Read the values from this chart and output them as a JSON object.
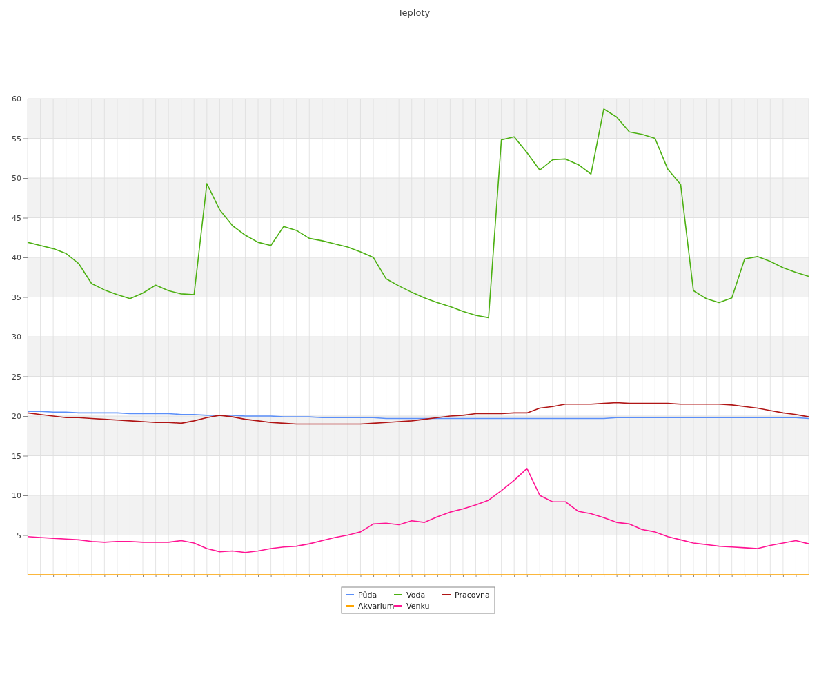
{
  "chart_data": {
    "type": "line",
    "title": "Teploty",
    "ylim": [
      0,
      60
    ],
    "yticks": [
      {
        "value": 0,
        "label": null
      },
      5,
      10,
      15,
      20,
      25,
      30,
      35,
      40,
      45,
      50,
      55,
      60
    ],
    "categories": [
      null,
      null,
      null,
      null,
      null,
      null,
      null,
      null,
      null,
      null,
      null,
      null,
      null,
      null,
      null,
      null,
      null,
      null,
      null,
      null,
      null,
      null,
      null,
      null,
      null,
      null,
      null,
      null,
      null,
      null,
      null,
      null,
      null,
      null,
      null,
      null,
      null,
      null,
      null,
      null,
      null,
      null,
      null,
      null,
      null,
      null,
      null,
      null,
      null,
      null,
      null,
      null,
      null,
      null,
      null,
      null,
      null,
      null,
      null,
      null,
      null,
      null
    ],
    "grid": true,
    "legend": "bottom",
    "line_style": "solid",
    "series": [
      {
        "name": "Půda",
        "color": "#5b8ff9",
        "values": [
          20.6,
          20.6,
          20.5,
          20.5,
          20.4,
          20.4,
          20.4,
          20.4,
          20.3,
          20.3,
          20.3,
          20.3,
          20.2,
          20.2,
          20.1,
          20.1,
          20.1,
          20.0,
          20.0,
          20.0,
          19.9,
          19.9,
          19.9,
          19.8,
          19.8,
          19.8,
          19.8,
          19.8,
          19.7,
          19.7,
          19.7,
          19.7,
          19.7,
          19.7,
          19.7,
          19.7,
          19.7,
          19.7,
          19.7,
          19.7,
          19.7,
          19.7,
          19.7,
          19.7,
          19.7,
          19.7,
          19.8,
          19.8,
          19.8,
          19.8,
          19.8,
          19.8,
          19.8,
          19.8,
          19.8,
          19.8,
          19.8,
          19.8,
          19.8,
          19.8,
          19.8,
          19.7
        ]
      },
      {
        "name": "Voda",
        "color": "#4cb012",
        "values": [
          41.9,
          41.5,
          41.1,
          40.5,
          39.2,
          36.7,
          35.9,
          35.3,
          34.8,
          35.5,
          36.5,
          35.8,
          35.4,
          35.3,
          49.3,
          46,
          44,
          42.8,
          41.9,
          41.5,
          43.9,
          43.4,
          42.4,
          42.1,
          41.7,
          41.3,
          40.7,
          40.0,
          37.3,
          36.4,
          35.6,
          34.9,
          34.3,
          33.8,
          33.2,
          32.7,
          32.4,
          54.8,
          55.2,
          53.2,
          51,
          52.3,
          52.4,
          51.7,
          50.5,
          58.7,
          57.7,
          55.8,
          55.5,
          55.0,
          51.1,
          49.2,
          35.8,
          34.8,
          34.3,
          34.9,
          39.8,
          40.1,
          39.5,
          38.7,
          38.1,
          37.6
        ]
      },
      {
        "name": "Pracovna",
        "color": "#b01515",
        "values": [
          20.4,
          20.2,
          20.0,
          19.8,
          19.8,
          19.7,
          19.6,
          19.5,
          19.4,
          19.3,
          19.2,
          19.2,
          19.1,
          19.4,
          19.8,
          20.1,
          19.9,
          19.6,
          19.4,
          19.2,
          19.1,
          19.0,
          19.0,
          19.0,
          19.0,
          19.0,
          19.0,
          19.1,
          19.2,
          19.3,
          19.4,
          19.6,
          19.8,
          20.0,
          20.1,
          20.3,
          20.3,
          20.3,
          20.4,
          20.4,
          21.0,
          21.2,
          21.5,
          21.5,
          21.5,
          21.6,
          21.7,
          21.6,
          21.6,
          21.6,
          21.6,
          21.5,
          21.5,
          21.5,
          21.5,
          21.4,
          21.2,
          21.0,
          20.7,
          20.4,
          20.2,
          19.9
        ]
      },
      {
        "name": "Akvarium",
        "color": "#ffa500",
        "values": [
          0,
          0,
          0,
          0,
          0,
          0,
          0,
          0,
          0,
          0,
          0,
          0,
          0,
          0,
          0,
          0,
          0,
          0,
          0,
          0,
          0,
          0,
          0,
          0,
          0,
          0,
          0,
          0,
          0,
          0,
          0,
          0,
          0,
          0,
          0,
          0,
          0,
          0,
          0,
          0,
          0,
          0,
          0,
          0,
          0,
          0,
          0,
          0,
          0,
          0,
          0,
          0,
          0,
          0,
          0,
          0,
          0,
          0,
          0,
          0,
          0,
          0
        ]
      },
      {
        "name": "Venku",
        "color": "#ff1493",
        "values": [
          4.8,
          4.7,
          4.6,
          4.5,
          4.4,
          4.2,
          4.1,
          4.2,
          4.2,
          4.1,
          4.1,
          4.1,
          4.3,
          4.0,
          3.3,
          2.9,
          3.0,
          2.8,
          3.0,
          3.3,
          3.5,
          3.6,
          3.9,
          4.3,
          4.7,
          5.0,
          5.4,
          6.4,
          6.5,
          6.3,
          6.8,
          6.6,
          7.3,
          7.9,
          8.3,
          8.8,
          9.4,
          10.6,
          11.9,
          13.4,
          10.0,
          9.2,
          9.2,
          8.0,
          7.7,
          7.2,
          6.6,
          6.4,
          5.7,
          5.4,
          4.8,
          4.4,
          4.0,
          3.8,
          3.6,
          3.5,
          3.4,
          3.3,
          3.7,
          4.0,
          4.3,
          3.9
        ]
      }
    ]
  }
}
